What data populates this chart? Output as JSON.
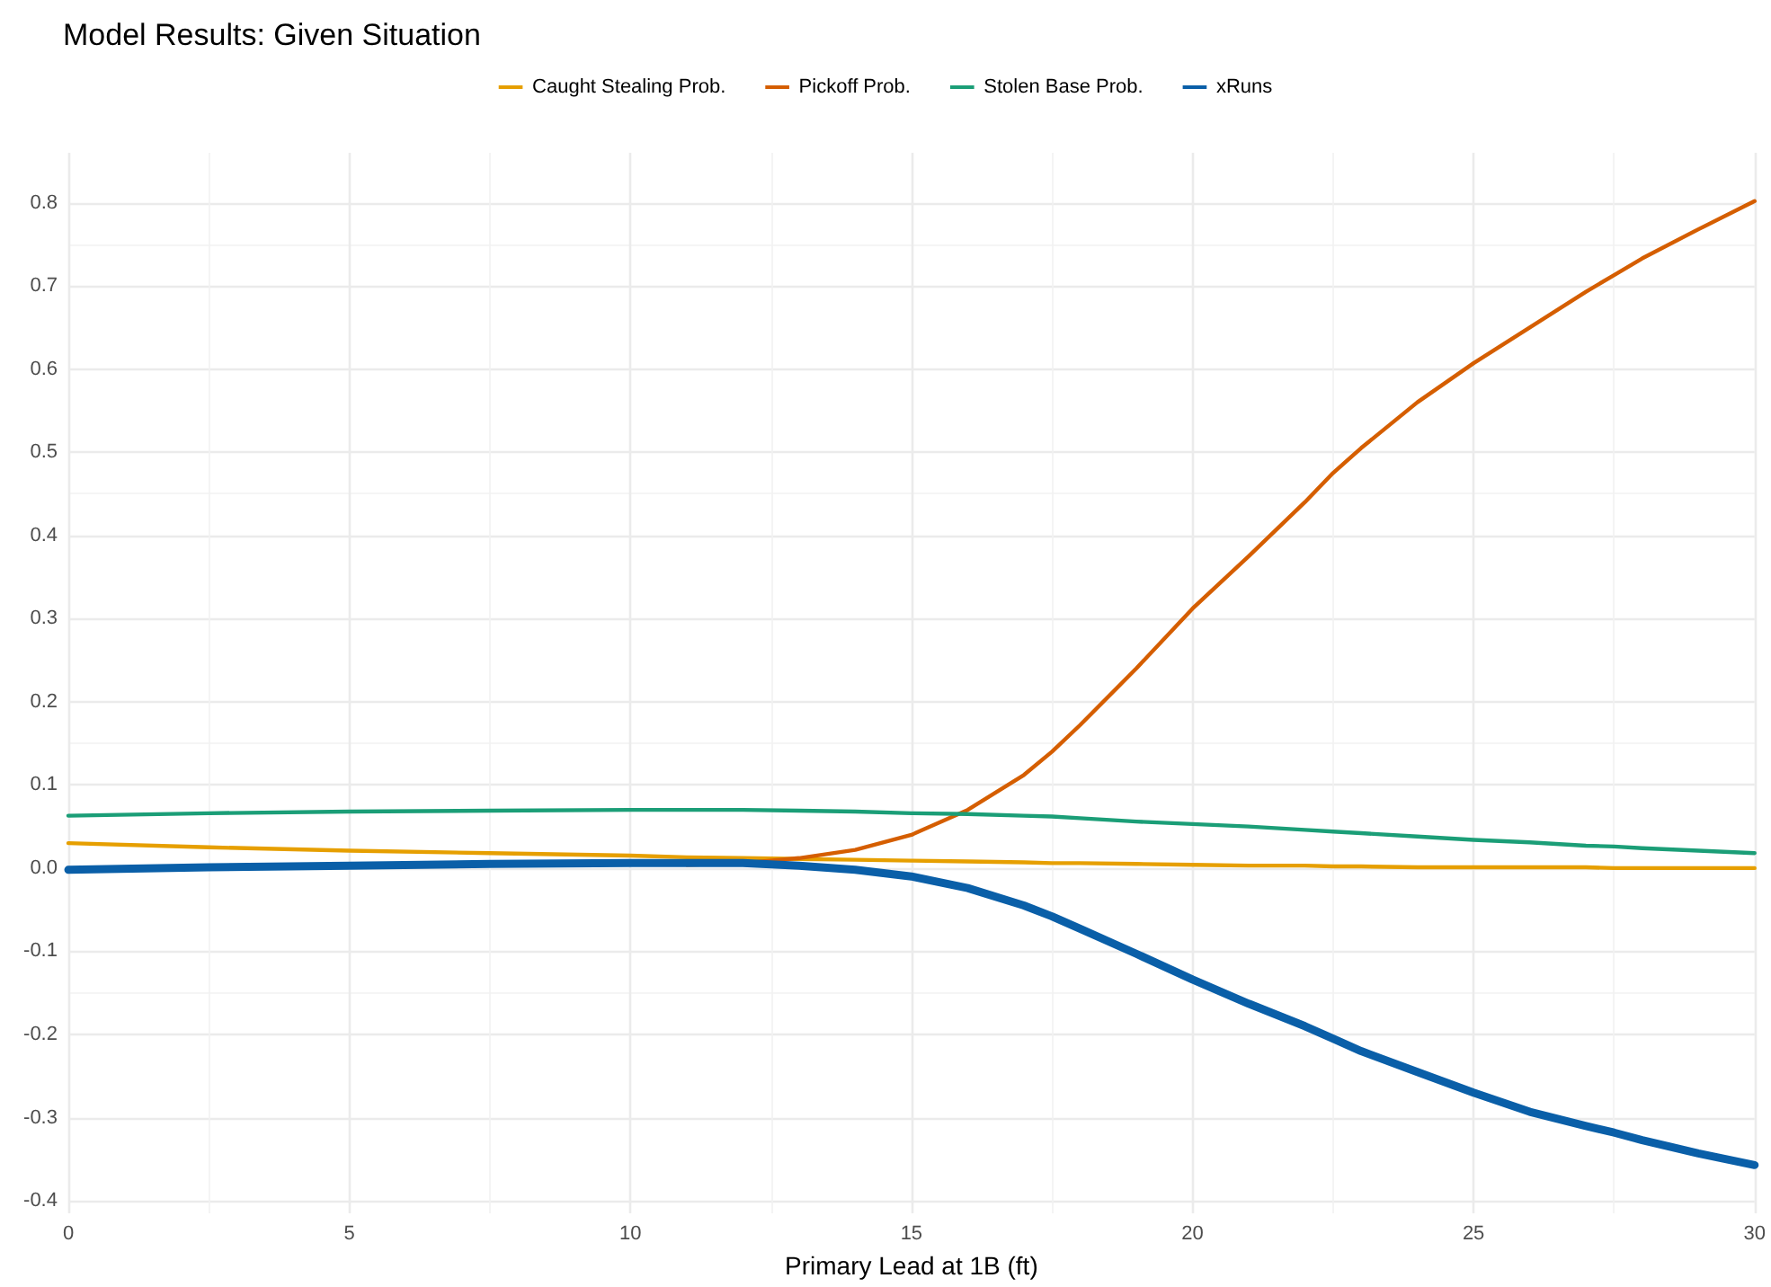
{
  "chart_data": {
    "type": "line",
    "title": "Model Results: Given Situation",
    "xlabel": "Primary Lead at 1B (ft)",
    "x": [
      0,
      2.5,
      5,
      7.5,
      10,
      11,
      12,
      13,
      14,
      15,
      16,
      17,
      17.5,
      18,
      19,
      20,
      21,
      22,
      22.5,
      23,
      24,
      25,
      26,
      27,
      27.5,
      28,
      29,
      30
    ],
    "series": [
      {
        "name": "Caught Stealing Prob.",
        "color": "#e69f00",
        "values": [
          0.03,
          0.025,
          0.021,
          0.018,
          0.015,
          0.013,
          0.012,
          0.011,
          0.01,
          0.009,
          0.008,
          0.007,
          0.006,
          0.006,
          0.005,
          0.004,
          0.003,
          0.003,
          0.002,
          0.002,
          0.001,
          0.001,
          0.001,
          0.001,
          0,
          0,
          0,
          0
        ]
      },
      {
        "name": "Pickoff Prob.",
        "color": "#d55e00",
        "values": [
          null,
          null,
          null,
          null,
          null,
          0.004,
          0.006,
          0.012,
          0.022,
          0.04,
          0.07,
          0.112,
          0.14,
          0.172,
          0.24,
          0.312,
          0.375,
          0.44,
          0.475,
          0.505,
          0.56,
          0.607,
          0.65,
          0.693,
          0.713,
          0.733,
          0.768,
          0.802
        ]
      },
      {
        "name": "Stolen Base Prob.",
        "color": "#1b9e77",
        "values": [
          0.063,
          0.066,
          0.068,
          0.069,
          0.07,
          0.07,
          0.07,
          0.069,
          0.068,
          0.066,
          0.065,
          0.063,
          0.062,
          0.06,
          0.056,
          0.053,
          0.05,
          0.046,
          0.044,
          0.042,
          0.038,
          0.034,
          0.031,
          0.027,
          0.026,
          0.024,
          0.021,
          0.018
        ]
      },
      {
        "name": "xRuns",
        "color": "#0a5fa8",
        "values": [
          -0.002,
          0.001,
          0.003,
          0.005,
          0.006,
          0.006,
          0.006,
          0.003,
          -0.002,
          -0.01,
          -0.024,
          -0.045,
          -0.058,
          -0.073,
          -0.103,
          -0.134,
          -0.163,
          -0.19,
          -0.205,
          -0.22,
          -0.245,
          -0.27,
          -0.293,
          -0.31,
          -0.318,
          -0.327,
          -0.343,
          -0.357
        ]
      }
    ],
    "xlim": [
      0,
      30
    ],
    "xticks": [
      0,
      5,
      10,
      15,
      20,
      25,
      30
    ],
    "ylim": [
      -0.415,
      0.86
    ],
    "yticks": [
      -0.4,
      -0.3,
      -0.2,
      -0.1,
      {
        "value": 0,
        "label": "0.0"
      },
      0.1,
      0.2,
      0.3,
      0.4,
      0.5,
      0.6,
      0.7,
      0.8
    ],
    "grid": true,
    "legend": "top",
    "marker": "none",
    "line_style": "solid"
  }
}
